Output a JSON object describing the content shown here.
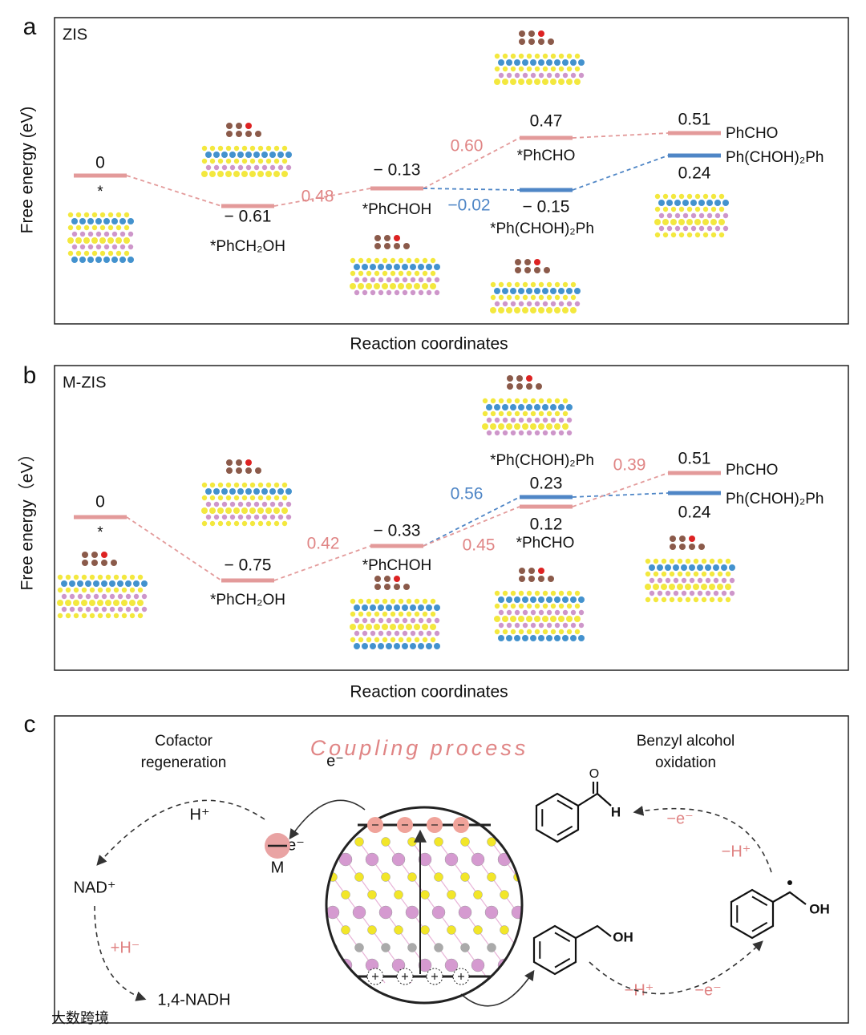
{
  "panels": [
    {
      "label": "a",
      "title": "ZIS",
      "y_label": "Free energy (eV)",
      "x_label": "Reaction coordinates",
      "levels": [
        {
          "energy": "0",
          "name": "*"
        },
        {
          "energy": "− 0.61",
          "name": "*PhCH₂OH"
        },
        {
          "energy": "− 0.13",
          "name": "*PhCHOH"
        },
        {
          "energy": "0.47",
          "name": "*PhCHO"
        },
        {
          "energy": "− 0.15",
          "name": "*Ph(CHOH)₂Ph"
        },
        {
          "energy": "0.51",
          "name": "PhCHO"
        },
        {
          "energy": "0.24",
          "name": "Ph(CHOH)₂Ph"
        }
      ],
      "barriers": [
        "0.48",
        "0.60",
        "−0.02"
      ]
    },
    {
      "label": "b",
      "title": "M-ZIS",
      "y_label": "Free energy（eV）",
      "x_label": "Reaction coordinates",
      "levels": [
        {
          "energy": "0",
          "name": "*"
        },
        {
          "energy": "− 0.75",
          "name": "*PhCH₂OH"
        },
        {
          "energy": "− 0.33",
          "name": "*PhCHOH"
        },
        {
          "energy": "0.23",
          "name": "*Ph(CHOH)₂Ph"
        },
        {
          "energy": "0.12",
          "name": "*PhCHO"
        },
        {
          "energy": "0.51",
          "name": "PhCHO"
        },
        {
          "energy": "0.24",
          "name": "Ph(CHOH)₂Ph"
        }
      ],
      "barriers": [
        "0.42",
        "0.56",
        "0.45",
        "0.39"
      ]
    }
  ],
  "panel_c": {
    "label": "c",
    "left_title": [
      "Cofactor",
      "regeneration"
    ],
    "center_title": "Coupling process",
    "right_title": [
      "Benzyl alcohol",
      "oxidation"
    ],
    "labels": [
      "H⁺",
      "NAD⁺",
      "+H⁻",
      "1,4-NADH",
      "e⁻",
      "e⁻",
      "M",
      "−e⁻",
      "−H⁺",
      "−H⁺",
      "−e⁻"
    ],
    "atoms": [
      "O",
      "H",
      "OH",
      "OH"
    ]
  },
  "watermark": "大数跨境"
}
